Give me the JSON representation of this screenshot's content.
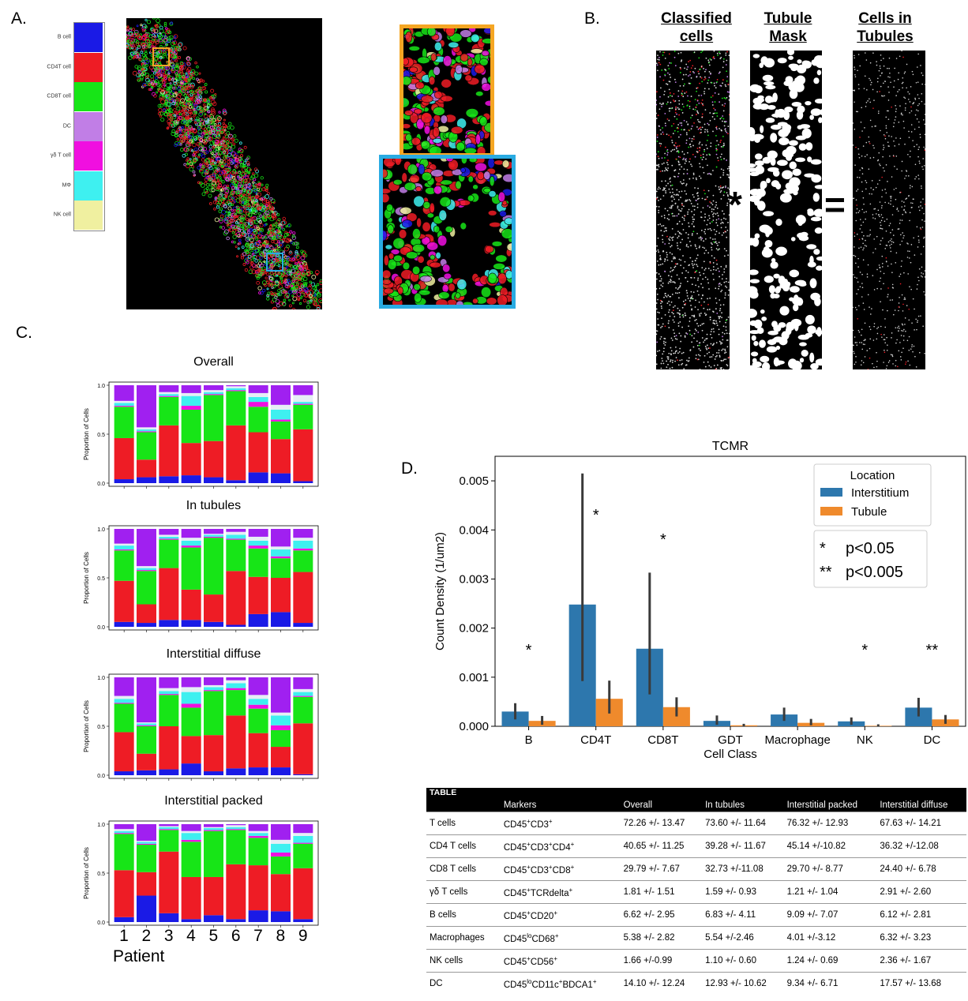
{
  "panel_labels": {
    "a": "A.",
    "b": "B.",
    "c": "C.",
    "d": "D."
  },
  "panel_a": {
    "legend": [
      {
        "label": "B cell",
        "color": "#1a1ae6"
      },
      {
        "label": "CD4T cell",
        "color": "#ee1c25"
      },
      {
        "label": "CD8T cell",
        "color": "#17e517"
      },
      {
        "label": "DC",
        "color": "#c17ee6"
      },
      {
        "label": "γδ T cell",
        "color": "#f00fe0"
      },
      {
        "label": "MΦ",
        "color": "#3ef0f0"
      },
      {
        "label": "NK cell",
        "color": "#f0f0a0"
      }
    ],
    "inset_colors": {
      "orange": "#f5a623",
      "blue": "#29abe2"
    }
  },
  "panel_b": {
    "headers": [
      "Classified cells",
      "Tubule Mask",
      "Cells in Tubules"
    ],
    "operators": [
      "*",
      "="
    ]
  },
  "panel_c": {
    "ylabel": "Proportion of Cells",
    "xlabel": "Patient",
    "y_ticks": [
      "0.0",
      "0.5",
      "1.0"
    ],
    "patients": [
      "1",
      "2",
      "3",
      "4",
      "5",
      "6",
      "7",
      "8",
      "9"
    ],
    "class_colors": [
      "#1a1ae6",
      "#ee1c25",
      "#17e517",
      "#f00fe0",
      "#3ef0f0",
      "#e6eef5",
      "#a020f0"
    ],
    "subplots": [
      {
        "title": "Overall",
        "stacks": [
          [
            0.04,
            0.42,
            0.32,
            0.01,
            0.03,
            0.02,
            0.16
          ],
          [
            0.06,
            0.18,
            0.28,
            0.01,
            0.02,
            0.02,
            0.43
          ],
          [
            0.07,
            0.52,
            0.29,
            0.01,
            0.02,
            0.02,
            0.07
          ],
          [
            0.08,
            0.33,
            0.34,
            0.04,
            0.1,
            0.03,
            0.08
          ],
          [
            0.06,
            0.37,
            0.47,
            0.01,
            0.02,
            0.02,
            0.05
          ],
          [
            0.03,
            0.56,
            0.35,
            0.01,
            0.02,
            0.02,
            0.01
          ],
          [
            0.11,
            0.41,
            0.26,
            0.05,
            0.05,
            0.04,
            0.08
          ],
          [
            0.1,
            0.35,
            0.18,
            0.02,
            0.1,
            0.05,
            0.2
          ],
          [
            0.02,
            0.53,
            0.25,
            0.01,
            0.02,
            0.07,
            0.1
          ]
        ]
      },
      {
        "title": "In tubules",
        "stacks": [
          [
            0.05,
            0.42,
            0.31,
            0.01,
            0.04,
            0.02,
            0.15
          ],
          [
            0.04,
            0.19,
            0.34,
            0.01,
            0.02,
            0.02,
            0.38
          ],
          [
            0.07,
            0.53,
            0.29,
            0.01,
            0.02,
            0.02,
            0.06
          ],
          [
            0.07,
            0.31,
            0.43,
            0.02,
            0.05,
            0.03,
            0.09
          ],
          [
            0.05,
            0.28,
            0.58,
            0.01,
            0.02,
            0.01,
            0.05
          ],
          [
            0.02,
            0.55,
            0.32,
            0.01,
            0.04,
            0.03,
            0.03
          ],
          [
            0.13,
            0.38,
            0.29,
            0.03,
            0.05,
            0.04,
            0.08
          ],
          [
            0.15,
            0.35,
            0.2,
            0.02,
            0.07,
            0.03,
            0.18
          ],
          [
            0.04,
            0.52,
            0.22,
            0.02,
            0.08,
            0.03,
            0.09
          ]
        ]
      },
      {
        "title": "Interstitial diffuse",
        "stacks": [
          [
            0.04,
            0.4,
            0.29,
            0.01,
            0.04,
            0.03,
            0.19
          ],
          [
            0.05,
            0.17,
            0.28,
            0.01,
            0.02,
            0.01,
            0.46
          ],
          [
            0.06,
            0.44,
            0.32,
            0.01,
            0.03,
            0.03,
            0.11
          ],
          [
            0.12,
            0.28,
            0.29,
            0.04,
            0.12,
            0.05,
            0.1
          ],
          [
            0.04,
            0.37,
            0.45,
            0.01,
            0.03,
            0.02,
            0.08
          ],
          [
            0.07,
            0.54,
            0.26,
            0.02,
            0.05,
            0.03,
            0.03
          ],
          [
            0.08,
            0.35,
            0.25,
            0.04,
            0.06,
            0.04,
            0.18
          ],
          [
            0.08,
            0.21,
            0.17,
            0.05,
            0.1,
            0.03,
            0.36
          ],
          [
            0.01,
            0.52,
            0.27,
            0.01,
            0.04,
            0.03,
            0.12
          ]
        ]
      },
      {
        "title": "Interstitial packed",
        "stacks": [
          [
            0.05,
            0.48,
            0.37,
            0.01,
            0.02,
            0.02,
            0.05
          ],
          [
            0.27,
            0.24,
            0.28,
            0.01,
            0.02,
            0.01,
            0.17
          ],
          [
            0.09,
            0.63,
            0.22,
            0.01,
            0.02,
            0.01,
            0.02
          ],
          [
            0.03,
            0.43,
            0.36,
            0.02,
            0.07,
            0.02,
            0.07
          ],
          [
            0.07,
            0.39,
            0.47,
            0.01,
            0.02,
            0.01,
            0.03
          ],
          [
            0.03,
            0.56,
            0.35,
            0.01,
            0.02,
            0.02,
            0.01
          ],
          [
            0.12,
            0.46,
            0.28,
            0.02,
            0.03,
            0.02,
            0.07
          ],
          [
            0.11,
            0.38,
            0.18,
            0.04,
            0.09,
            0.04,
            0.16
          ],
          [
            0.03,
            0.52,
            0.25,
            0.01,
            0.07,
            0.03,
            0.09
          ]
        ]
      }
    ]
  },
  "chart_data": {
    "type": "bar",
    "title": "TCMR",
    "xlabel": "Cell Class",
    "ylabel": "Count Density (1/um2)",
    "categories": [
      "B",
      "CD4T",
      "CD8T",
      "GDT",
      "Macrophage",
      "NK",
      "DC"
    ],
    "ylim": [
      0,
      0.0055
    ],
    "y_ticks": [
      "0.000",
      "0.001",
      "0.002",
      "0.003",
      "0.004",
      "0.005"
    ],
    "series": [
      {
        "name": "Interstitium",
        "color": "#2d77ad",
        "values": [
          0.0003,
          0.00248,
          0.00158,
          0.00011,
          0.00024,
          0.0001,
          0.00038
        ],
        "err_low": [
          0.00014,
          0.00092,
          0.00065,
          3e-05,
          0.00011,
          3e-05,
          0.0002
        ],
        "err_high": [
          0.00047,
          0.00515,
          0.00313,
          0.00022,
          0.00038,
          0.00018,
          0.00058
        ]
      },
      {
        "name": "Tubule",
        "color": "#ef8a2c",
        "values": [
          0.00011,
          0.00056,
          0.00039,
          2e-05,
          7e-05,
          1e-05,
          0.00014
        ],
        "err_low": [
          3e-05,
          0.00026,
          0.0002,
          0.0,
          2e-05,
          0.0,
          5e-05
        ],
        "err_high": [
          0.00021,
          0.00093,
          0.00059,
          5e-05,
          0.00015,
          4e-05,
          0.00023
        ]
      }
    ],
    "annotations": [
      "*",
      "*",
      "*",
      "",
      "",
      "*",
      "**"
    ],
    "legend_title": "Location",
    "legend_position": "top-right",
    "significance": [
      {
        "mark": "*",
        "text": "p<0.05"
      },
      {
        "mark": "**",
        "text": "p<0.005"
      }
    ]
  },
  "table": {
    "title": "TABLE",
    "headers": [
      "Markers",
      "Overall",
      "In tubules",
      "Interstitial packed",
      "Interstitial diffuse"
    ],
    "rows": [
      {
        "name": "T cells",
        "m1": "CD45",
        "s1": "+",
        "m2": "CD3",
        "s2": "+",
        "m3": "",
        "s3": "",
        "m4": "",
        "s4": "",
        "overall": "72.26 +/- 13.47",
        "tubules": "73.60 +/- 11.64",
        "packed": "76.32 +/- 12.93",
        "diffuse": "67.63 +/- 14.21"
      },
      {
        "name": "CD4 T cells",
        "m1": "CD45",
        "s1": "+",
        "m2": "CD3",
        "s2": "+",
        "m3": "CD4",
        "s3": "+",
        "m4": "",
        "s4": "",
        "overall": "40.65 +/- 11.25",
        "tubules": "39.28 +/- 11.67",
        "packed": "45.14 +/-10.82",
        "diffuse": "36.32 +/-12.08"
      },
      {
        "name": "CD8 T cells",
        "m1": "CD45",
        "s1": "+",
        "m2": "CD3",
        "s2": "+",
        "m3": "CD8",
        "s3": "+",
        "m4": "",
        "s4": "",
        "overall": "29.79 +/- 7.67",
        "tubules": "32.73 +/-11.08",
        "packed": "29.70 +/- 8.77",
        "diffuse": "24.40 +/- 6.78"
      },
      {
        "name": "γδ T cells",
        "m1": "CD45",
        "s1": "+",
        "m2": "TCRdelta",
        "s2": "+",
        "m3": "",
        "s3": "",
        "m4": "",
        "s4": "",
        "overall": "1.81 +/- 1.51",
        "tubules": "1.59 +/- 0.93",
        "packed": "1.21 +/- 1.04",
        "diffuse": "2.91 +/- 2.60"
      },
      {
        "name": "B cells",
        "m1": "CD45",
        "s1": "+",
        "m2": "CD20",
        "s2": "+",
        "m3": "",
        "s3": "",
        "m4": "",
        "s4": "",
        "overall": "6.62 +/- 2.95",
        "tubules": "6.83 +/- 4.11",
        "packed": "9.09 +/- 7.07",
        "diffuse": "6.12 +/- 2.81"
      },
      {
        "name": "Macrophages",
        "m1": "CD45",
        "s1": "lo",
        "m2": "CD68",
        "s2": "+",
        "m3": "",
        "s3": "",
        "m4": "",
        "s4": "",
        "overall": "5.38 +/- 2.82",
        "tubules": "5.54 +/-2.46",
        "packed": "4.01 +/-3.12",
        "diffuse": "6.32 +/- 3.23"
      },
      {
        "name": "NK cells",
        "m1": "CD45",
        "s1": "+",
        "m2": "CD56",
        "s2": "+",
        "m3": "",
        "s3": "",
        "m4": "",
        "s4": "",
        "overall": "1.66 +/-0.99",
        "tubules": "1.10 +/- 0.60",
        "packed": "1.24 +/- 0.69",
        "diffuse": "2.36 +/- 1.67"
      },
      {
        "name": "DC",
        "m1": "CD45",
        "s1": "lo",
        "m2": "CD11c",
        "s2": "+",
        "m3": "BDCA1",
        "s3": "+",
        "m4": "",
        "s4": "",
        "overall": "14.10 +/- 12.24",
        "tubules": "12.93 +/- 10.62",
        "packed": "9.34 +/- 6.71",
        "diffuse": "17.57 +/- 13.68"
      }
    ]
  }
}
